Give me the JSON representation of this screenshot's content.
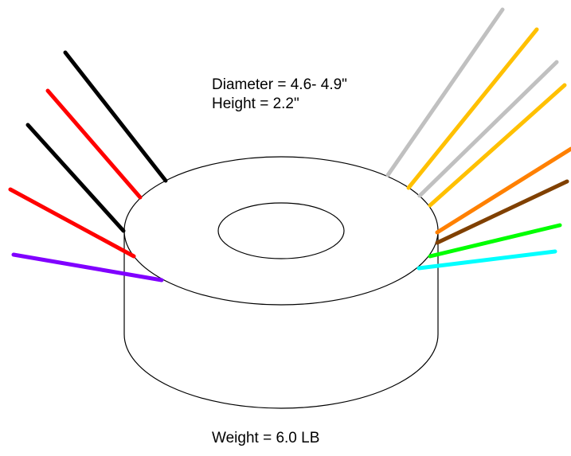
{
  "dimensions": {
    "diameter": "Diameter = 4.6- 4.9\"",
    "height": "Height = 2.2\""
  },
  "weight": "Weight = 6.0 LB",
  "left_leads": [
    {
      "color": "#000000"
    },
    {
      "color": "#ff0000"
    },
    {
      "color": "#000000"
    },
    {
      "color": "#ff0000"
    },
    {
      "color": "#8000ff"
    }
  ],
  "right_leads": [
    {
      "color": "#c0c0c0"
    },
    {
      "color": "#ffc000"
    },
    {
      "color": "#c0c0c0"
    },
    {
      "color": "#ffc000"
    },
    {
      "color": "#ff8000"
    },
    {
      "color": "#804000"
    },
    {
      "color": "#00ff00"
    },
    {
      "color": "#00ffff"
    }
  ]
}
